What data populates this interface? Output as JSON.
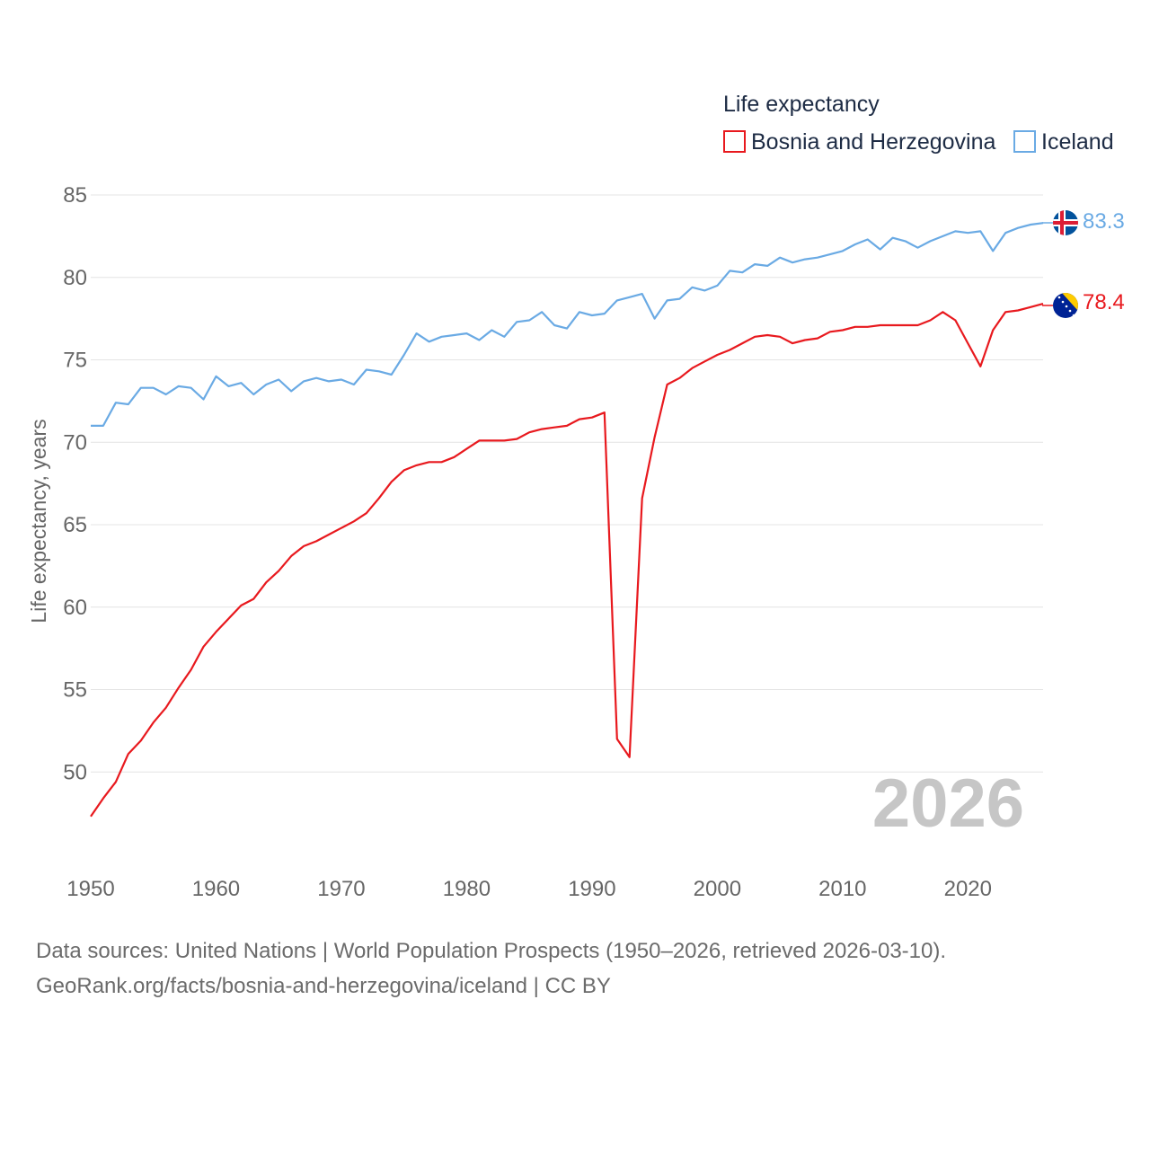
{
  "chart_data": {
    "type": "line",
    "legend_title": "Life expectancy",
    "ylabel": "Life expectancy, years",
    "xlim": [
      1950,
      2026
    ],
    "ylim": [
      45,
      85
    ],
    "yticks": [
      50,
      55,
      60,
      65,
      70,
      75,
      80,
      85
    ],
    "xticks": [
      1950,
      1960,
      1970,
      1980,
      1990,
      2000,
      2010,
      2020
    ],
    "year_watermark": "2026",
    "legend_placement": "top-right",
    "series": [
      {
        "name": "Bosnia and Herzegovina",
        "color": "#e8191e",
        "flag": "bosnia-flag-icon",
        "end_label": "78.4",
        "start_year": 1950,
        "values": [
          47.3,
          48.4,
          49.4,
          51.1,
          51.9,
          53.0,
          53.9,
          55.1,
          56.2,
          57.6,
          58.5,
          59.3,
          60.1,
          60.5,
          61.5,
          62.2,
          63.1,
          63.7,
          64.0,
          64.4,
          64.8,
          65.2,
          65.7,
          66.6,
          67.6,
          68.3,
          68.6,
          68.8,
          68.8,
          69.1,
          69.6,
          70.1,
          70.1,
          70.1,
          70.2,
          70.6,
          70.8,
          70.9,
          71.0,
          71.4,
          71.5,
          71.8,
          52.0,
          50.9,
          66.6,
          70.3,
          73.5,
          73.9,
          74.5,
          74.9,
          75.3,
          75.6,
          76.0,
          76.4,
          76.5,
          76.4,
          76.0,
          76.2,
          76.3,
          76.7,
          76.8,
          77.0,
          77.0,
          77.1,
          77.1,
          77.1,
          77.1,
          77.4,
          77.9,
          77.4,
          76.0,
          74.6,
          76.8,
          77.9,
          78.0,
          78.2,
          78.4
        ]
      },
      {
        "name": "Iceland",
        "color": "#6aaae4",
        "flag": "iceland-flag-icon",
        "end_label": "83.3",
        "start_year": 1950,
        "values": [
          71.0,
          71.0,
          72.4,
          72.3,
          73.3,
          73.3,
          72.9,
          73.4,
          73.3,
          72.6,
          74.0,
          73.4,
          73.6,
          72.9,
          73.5,
          73.8,
          73.1,
          73.7,
          73.9,
          73.7,
          73.8,
          73.5,
          74.4,
          74.3,
          74.1,
          75.3,
          76.6,
          76.1,
          76.4,
          76.5,
          76.6,
          76.2,
          76.8,
          76.4,
          77.3,
          77.4,
          77.9,
          77.1,
          76.9,
          77.9,
          77.7,
          77.8,
          78.6,
          78.8,
          79.0,
          77.5,
          78.6,
          78.7,
          79.4,
          79.2,
          79.5,
          80.4,
          80.3,
          80.8,
          80.7,
          81.2,
          80.9,
          81.1,
          81.2,
          81.4,
          81.6,
          82.0,
          82.3,
          81.7,
          82.4,
          82.2,
          81.8,
          82.2,
          82.5,
          82.8,
          82.7,
          82.8,
          81.6,
          82.7,
          83.0,
          83.2,
          83.3
        ]
      }
    ]
  },
  "footer": {
    "source_line": "Data sources: United Nations | World Population Prospects (1950–2026, retrieved 2026-03-10).",
    "attribution_line": "GeoRank.org/facts/bosnia-and-herzegovina/iceland | CC BY"
  }
}
